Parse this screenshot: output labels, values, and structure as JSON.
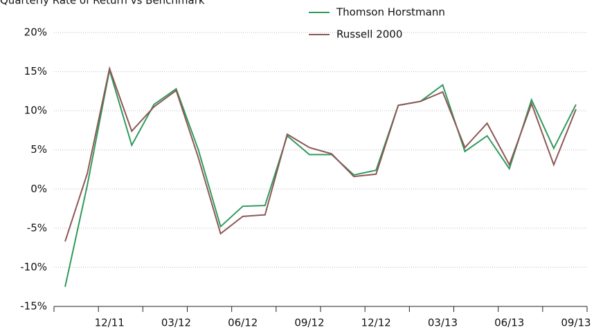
{
  "chart_data": {
    "type": "line",
    "title": "Quarterly Rate of Return vs Benchmark",
    "categories": [
      null,
      null,
      "12/11",
      null,
      null,
      "03/12",
      null,
      null,
      "06/12",
      null,
      null,
      "09/12",
      null,
      null,
      "12/12",
      null,
      null,
      "03/13",
      null,
      null,
      "06/13",
      null,
      null,
      "09/13"
    ],
    "series": [
      {
        "name": "Thomson Horstmann",
        "color": "#2f9a5c",
        "values": [
          -12.5,
          0.5,
          15.2,
          5.6,
          10.8,
          12.8,
          5,
          -4.8,
          -2.2,
          -2.1,
          6.8,
          4.4,
          4.4,
          1.8,
          2.4,
          10.7,
          11.2,
          13.3,
          4.8,
          6.8,
          2.6,
          11.4,
          5.2,
          10.8
        ]
      },
      {
        "name": "Russell 2000",
        "color": "#8e5656",
        "values": [
          -6.7,
          2,
          15.4,
          7.4,
          10.5,
          12.6,
          4,
          -5.7,
          -3.5,
          -3.3,
          7.0,
          5.3,
          4.5,
          1.6,
          1.9,
          10.7,
          11.2,
          12.4,
          5.3,
          8.4,
          3.1,
          10.9,
          3.1,
          10.2
        ]
      }
    ],
    "ylim": [
      -15,
      20
    ],
    "yticks": [
      {
        "value": -15,
        "label": "-15%"
      },
      {
        "value": -10,
        "label": "-10%"
      },
      {
        "value": -5,
        "label": "-5%"
      },
      {
        "value": 0,
        "label": "0%"
      },
      {
        "value": 5,
        "label": "5%"
      },
      {
        "value": 10,
        "label": "10%"
      },
      {
        "value": 15,
        "label": "15%"
      },
      {
        "value": 20,
        "label": "20%"
      }
    ],
    "grid": true,
    "legend": "top"
  }
}
